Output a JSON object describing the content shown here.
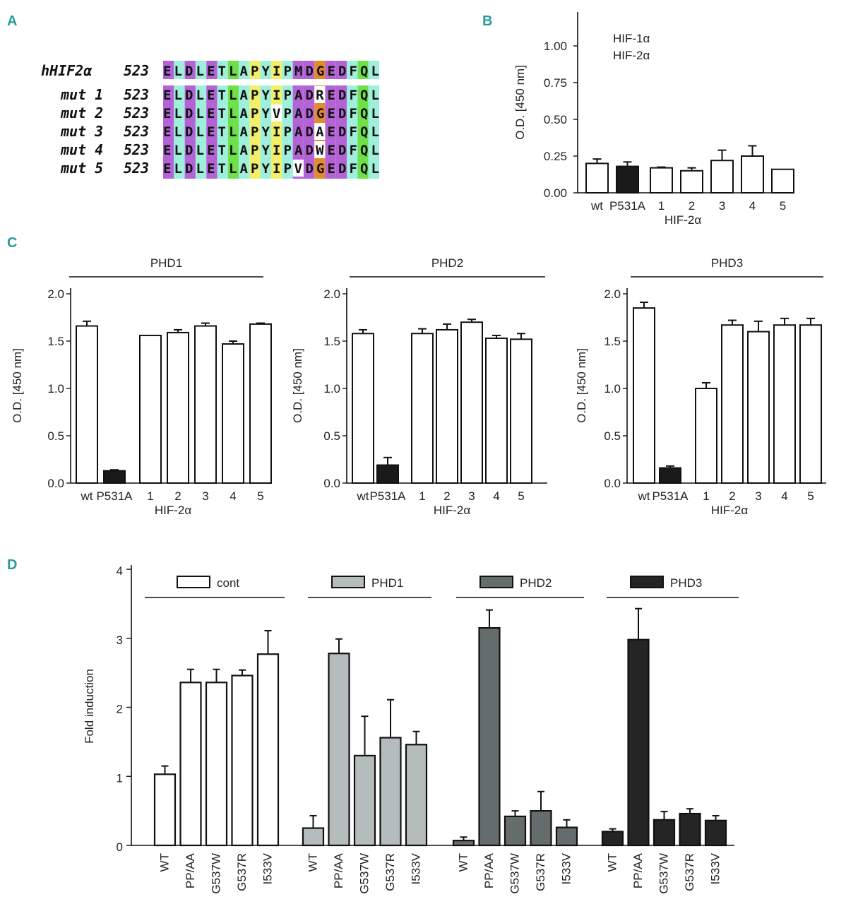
{
  "figure": {
    "panel_labels": [
      "A",
      "B",
      "C",
      "D"
    ]
  },
  "alignment": {
    "rows": [
      {
        "label": "hHIF2α",
        "start": "523",
        "seq": "ELDLETLAPYIPMDGEDFQL",
        "mut_positions": []
      },
      {
        "label": "mut 1",
        "start": "523",
        "seq": "ELDLETLAPYIPADREDFQL",
        "mut_positions": [
          14
        ]
      },
      {
        "label": "mut 2",
        "start": "523",
        "seq": "ELDLETLAPYVPADGEDFQL",
        "mut_positions": [
          10
        ]
      },
      {
        "label": "mut 3",
        "start": "523",
        "seq": "ELDLETLAPYIPADAEDFQL",
        "mut_positions": [
          14
        ]
      },
      {
        "label": "mut 4",
        "start": "523",
        "seq": "ELDLETLAPYIPADWEDFQL",
        "mut_positions": [
          14
        ]
      },
      {
        "label": "mut 5",
        "start": "523",
        "seq": "ELDLETLAPYIPVDGEDFQL",
        "mut_positions": [
          12
        ]
      }
    ],
    "column_colors": [
      "#b463d6",
      "#9ef0dc",
      "#b463d6",
      "#9ef0dc",
      "#b463d6",
      "#9ef0dc",
      "#6de04a",
      "#9ef0dc",
      "#f2f06a",
      "#9ef0dc",
      "#f2f06a",
      "#9ef0dc",
      "#b463d6",
      "#b463d6",
      "#e48a2c",
      "#b463d6",
      "#b463d6",
      "#9ef0dc",
      "#6de04a",
      "#9ef0dc"
    ],
    "mutation_color": "#e02020"
  },
  "chart_data": [
    {
      "id": "B",
      "type": "bar",
      "title": "",
      "ylabel": "O.D. [450 nm]",
      "xlabel": "HIF-2α",
      "ylim": [
        0,
        1.25
      ],
      "yticks": [
        "0.00",
        "0.25",
        "0.50",
        "0.75",
        "1.00"
      ],
      "categories": [
        "wt",
        "P531A",
        "1",
        "2",
        "3",
        "4",
        "5"
      ],
      "values": [
        0.2,
        0.18,
        0.17,
        0.15,
        0.22,
        0.25,
        0.16
      ],
      "errors": [
        0.03,
        0.03,
        0.005,
        0.02,
        0.07,
        0.07,
        0.0
      ],
      "fills": [
        "#ffffff",
        "#1a1a1a",
        "#ffffff",
        "#ffffff",
        "#ffffff",
        "#ffffff",
        "#ffffff"
      ],
      "legend": [
        "HIF-1α",
        "HIF-2α"
      ]
    },
    {
      "id": "C-PHD1",
      "type": "bar",
      "title": "PHD1",
      "ylabel": "O.D. [450 nm]",
      "xlabel": "HIF-2α",
      "ylim": [
        0,
        2.0
      ],
      "yticks": [
        "0.0",
        "0.5",
        "1.0",
        "1.5",
        "2.0"
      ],
      "categories": [
        "wt",
        "P531A",
        "1",
        "2",
        "3",
        "4",
        "5"
      ],
      "values": [
        1.66,
        0.13,
        1.56,
        1.59,
        1.66,
        1.47,
        1.68
      ],
      "errors": [
        0.05,
        0.01,
        0.0,
        0.03,
        0.03,
        0.03,
        0.01
      ],
      "fills": [
        "#ffffff",
        "#1a1a1a",
        "#ffffff",
        "#ffffff",
        "#ffffff",
        "#ffffff",
        "#ffffff"
      ]
    },
    {
      "id": "C-PHD2",
      "type": "bar",
      "title": "PHD2",
      "ylabel": "O.D. [450 nm]",
      "xlabel": "HIF-2α",
      "ylim": [
        0,
        2.0
      ],
      "yticks": [
        "0.0",
        "0.5",
        "1.0",
        "1.5",
        "2.0"
      ],
      "categories": [
        "wt",
        "P531A",
        "1",
        "2",
        "3",
        "4",
        "5"
      ],
      "values": [
        1.58,
        0.19,
        1.58,
        1.62,
        1.7,
        1.53,
        1.52
      ],
      "errors": [
        0.04,
        0.08,
        0.05,
        0.06,
        0.03,
        0.03,
        0.06
      ],
      "fills": [
        "#ffffff",
        "#1a1a1a",
        "#ffffff",
        "#ffffff",
        "#ffffff",
        "#ffffff",
        "#ffffff"
      ]
    },
    {
      "id": "C-PHD3",
      "type": "bar",
      "title": "PHD3",
      "ylabel": "O.D. [450 nm]",
      "xlabel": "HIF-2α",
      "ylim": [
        0,
        2.0
      ],
      "yticks": [
        "0.0",
        "0.5",
        "1.0",
        "1.5",
        "2.0"
      ],
      "categories": [
        "wt",
        "P531A",
        "1",
        "2",
        "3",
        "4",
        "5"
      ],
      "values": [
        1.85,
        0.16,
        1.0,
        1.67,
        1.6,
        1.67,
        1.67
      ],
      "errors": [
        0.06,
        0.02,
        0.06,
        0.05,
        0.11,
        0.07,
        0.07
      ],
      "fills": [
        "#ffffff",
        "#1a1a1a",
        "#ffffff",
        "#ffffff",
        "#ffffff",
        "#ffffff",
        "#ffffff"
      ]
    },
    {
      "id": "D",
      "type": "bar",
      "title": "",
      "ylabel": "Fold induction",
      "xlabel": "",
      "ylim": [
        0,
        4
      ],
      "yticks": [
        "0",
        "1",
        "2",
        "3",
        "4"
      ],
      "groups": [
        {
          "name": "cont",
          "color": "#ffffff",
          "categories": [
            "WT",
            "PP/AA",
            "G537W",
            "G537R",
            "I533V"
          ],
          "values": [
            1.03,
            2.36,
            2.36,
            2.46,
            2.77
          ],
          "errors": [
            0.12,
            0.19,
            0.19,
            0.08,
            0.34
          ]
        },
        {
          "name": "PHD1",
          "color": "#b4bcbc",
          "categories": [
            "WT",
            "PP/AA",
            "G537W",
            "G537R",
            "I533V"
          ],
          "values": [
            0.25,
            2.78,
            1.3,
            1.56,
            1.46
          ],
          "errors": [
            0.18,
            0.21,
            0.57,
            0.55,
            0.19
          ]
        },
        {
          "name": "PHD2",
          "color": "#646c6c",
          "categories": [
            "WT",
            "PP/AA",
            "G537W",
            "G537R",
            "I533V"
          ],
          "values": [
            0.07,
            3.15,
            0.42,
            0.5,
            0.26
          ],
          "errors": [
            0.05,
            0.26,
            0.08,
            0.28,
            0.11
          ]
        },
        {
          "name": "PHD3",
          "color": "#252525",
          "categories": [
            "WT",
            "PP/AA",
            "G537W",
            "G537R",
            "I533V"
          ],
          "values": [
            0.2,
            2.98,
            0.37,
            0.46,
            0.36
          ],
          "errors": [
            0.04,
            0.45,
            0.12,
            0.07,
            0.07
          ]
        }
      ]
    }
  ]
}
